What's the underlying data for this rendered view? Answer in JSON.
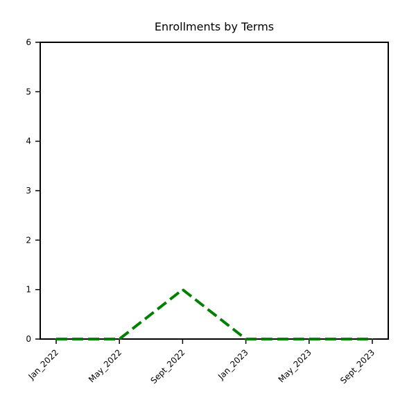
{
  "chart_data": {
    "type": "line",
    "title": "Enrollments by Terms",
    "xlabel": "",
    "ylabel": "",
    "categories": [
      "Jan_2022",
      "May_2022",
      "Sept_2022",
      "Jan_2023",
      "May_2023",
      "Sept_2023"
    ],
    "series": [
      {
        "values": [
          0,
          0,
          1,
          0,
          0,
          0
        ],
        "color": "#008000",
        "line_style": "dashed"
      }
    ],
    "ylim": [
      0,
      6
    ],
    "yticks": [
      "0",
      "1",
      "2",
      "3",
      "4",
      "5",
      "6"
    ],
    "grid": false,
    "legend": "none",
    "x_tick_rotation": "45deg"
  }
}
